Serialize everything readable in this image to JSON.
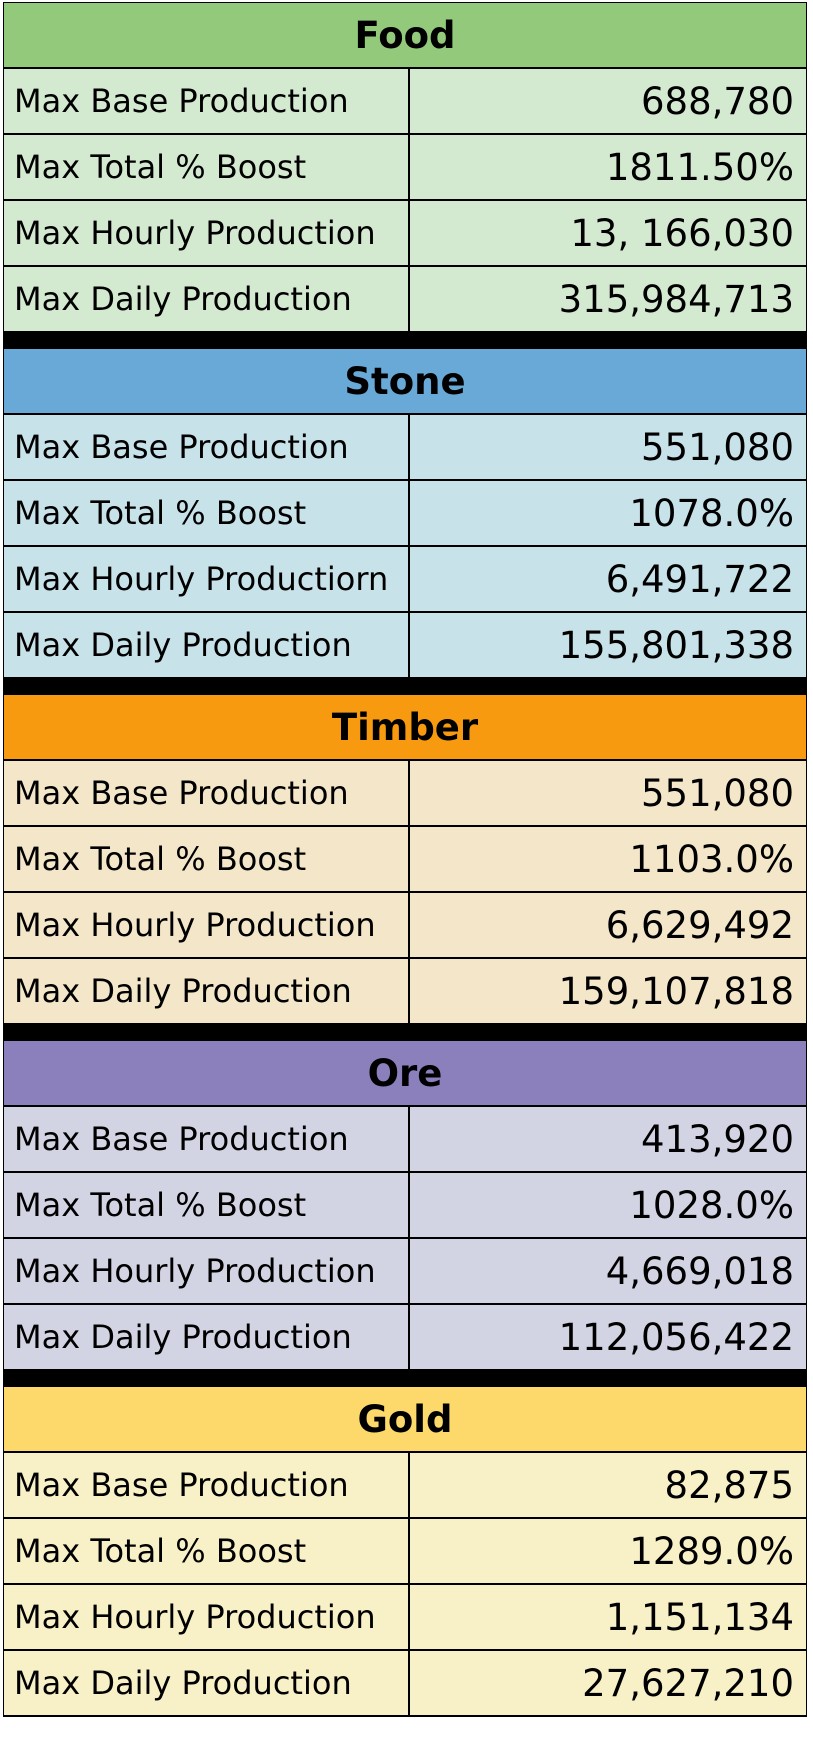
{
  "sections": [
    {
      "title": "Food",
      "header_color": "#92c97b",
      "row_color": "#d4ead0",
      "rows": [
        {
          "label": "Max Base Production",
          "value": "688,780"
        },
        {
          "label": "Max Total % Boost",
          "value": "1811.50%"
        },
        {
          "label": "Max Hourly Production",
          "value": "13, 166,030"
        },
        {
          "label": "Max Daily Production",
          "value": "315,984,713"
        }
      ]
    },
    {
      "title": "Stone",
      "header_color": "#68a9d8",
      "row_color": "#c8e2ea",
      "rows": [
        {
          "label": "Max Base Production",
          "value": "551,080"
        },
        {
          "label": "Max Total % Boost",
          "value": "1078.0%"
        },
        {
          "label": "Max Hourly Productiorn",
          "value": "6,491,722"
        },
        {
          "label": "Max Daily Production",
          "value": "155,801,338"
        }
      ]
    },
    {
      "title": "Timber",
      "header_color": "#f79a10",
      "row_color": "#f4e6c8",
      "rows": [
        {
          "label": "Max Base Production",
          "value": "551,080"
        },
        {
          "label": "Max Total % Boost",
          "value": "1103.0%"
        },
        {
          "label": "Max Hourly Production",
          "value": "6,629,492"
        },
        {
          "label": "Max Daily Production",
          "value": "159,107,818"
        }
      ]
    },
    {
      "title": "Ore",
      "header_color": "#8b7fbc",
      "row_color": "#d3d4e3",
      "rows": [
        {
          "label": "Max Base Production",
          "value": "413,920"
        },
        {
          "label": "Max Total % Boost",
          "value": "1028.0%"
        },
        {
          "label": "Max Hourly Production",
          "value": "4,669,018"
        },
        {
          "label": "Max Daily Production",
          "value": "112,056,422"
        }
      ]
    },
    {
      "title": "Gold",
      "header_color": "#fcd96a",
      "row_color": "#f8f0c6",
      "rows": [
        {
          "label": "Max Base Production",
          "value": "82,875"
        },
        {
          "label": "Max Total % Boost",
          "value": "1289.0%"
        },
        {
          "label": "Max Hourly Production",
          "value": "1,151,134"
        },
        {
          "label": "Max Daily Production",
          "value": "27,627,210"
        }
      ]
    }
  ]
}
